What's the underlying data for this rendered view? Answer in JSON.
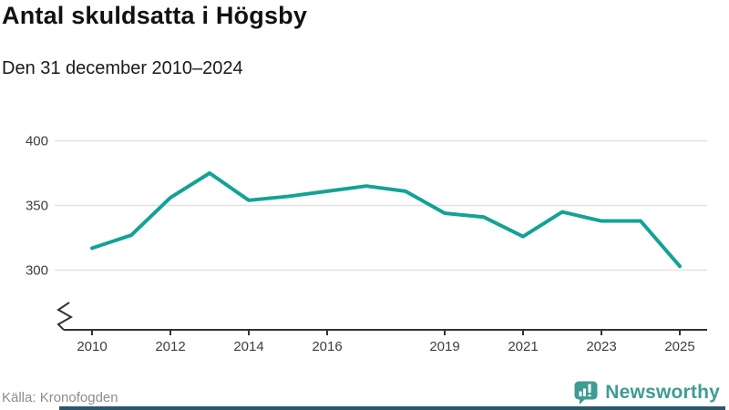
{
  "header": {
    "title": "Antal skuldsatta i Högsby",
    "subtitle": "Den 31 december 2010–2024"
  },
  "footer": {
    "source": "Källa: Kronofogden",
    "brand": "Newsworthy"
  },
  "colors": {
    "line": "#14a295",
    "grid": "#e2e2e2",
    "axis": "#333333",
    "tick_label": "#3d3d3d",
    "source_text": "#8c8c8c",
    "brand_teal": "#3e9c92",
    "bottom_bar": "#29586a"
  },
  "chart_data": {
    "type": "line",
    "title": "Antal skuldsatta i Högsby",
    "subtitle": "Den 31 december 2010–2024",
    "series": [
      {
        "name": "Antal skuldsatta",
        "x": [
          2010,
          2011,
          2012,
          2013,
          2014,
          2015,
          2016,
          2017,
          2018,
          2019,
          2020,
          2021,
          2022,
          2023,
          2024,
          2025
        ],
        "values": [
          317,
          327,
          356,
          375,
          354,
          357,
          361,
          365,
          361,
          344,
          341,
          326,
          345,
          338,
          338,
          303
        ]
      }
    ],
    "xticks": [
      2010,
      2012,
      2014,
      2016,
      2019,
      2021,
      2023,
      2025
    ],
    "yticks": [
      300,
      350,
      400
    ],
    "ylim": [
      300,
      400
    ],
    "axis_break": true,
    "grid": "horizontal",
    "legend": "none",
    "line_color": "#14a295"
  }
}
